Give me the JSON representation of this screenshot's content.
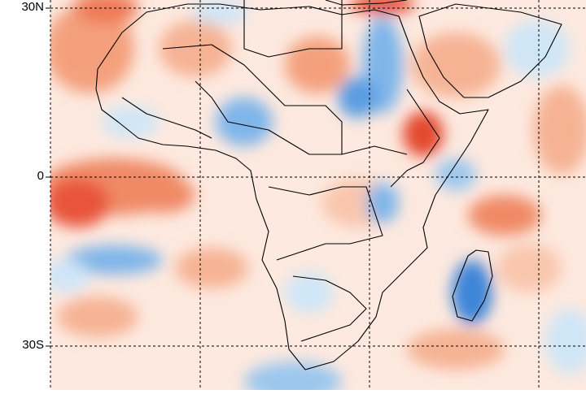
{
  "map": {
    "region": "Africa",
    "latitude_labels": [
      "30N",
      "0",
      "30S"
    ],
    "colors": {
      "warm_strong": "#e8553a",
      "warm": "#f4a07d",
      "warm_light": "#fbd3bf",
      "neutral": "#ffffff",
      "cool_light": "#cfe6f7",
      "cool": "#7fb6ea",
      "cool_strong": "#3d85d8",
      "grid": "#000000",
      "coastline": "#000000"
    },
    "grid": "dashed"
  }
}
